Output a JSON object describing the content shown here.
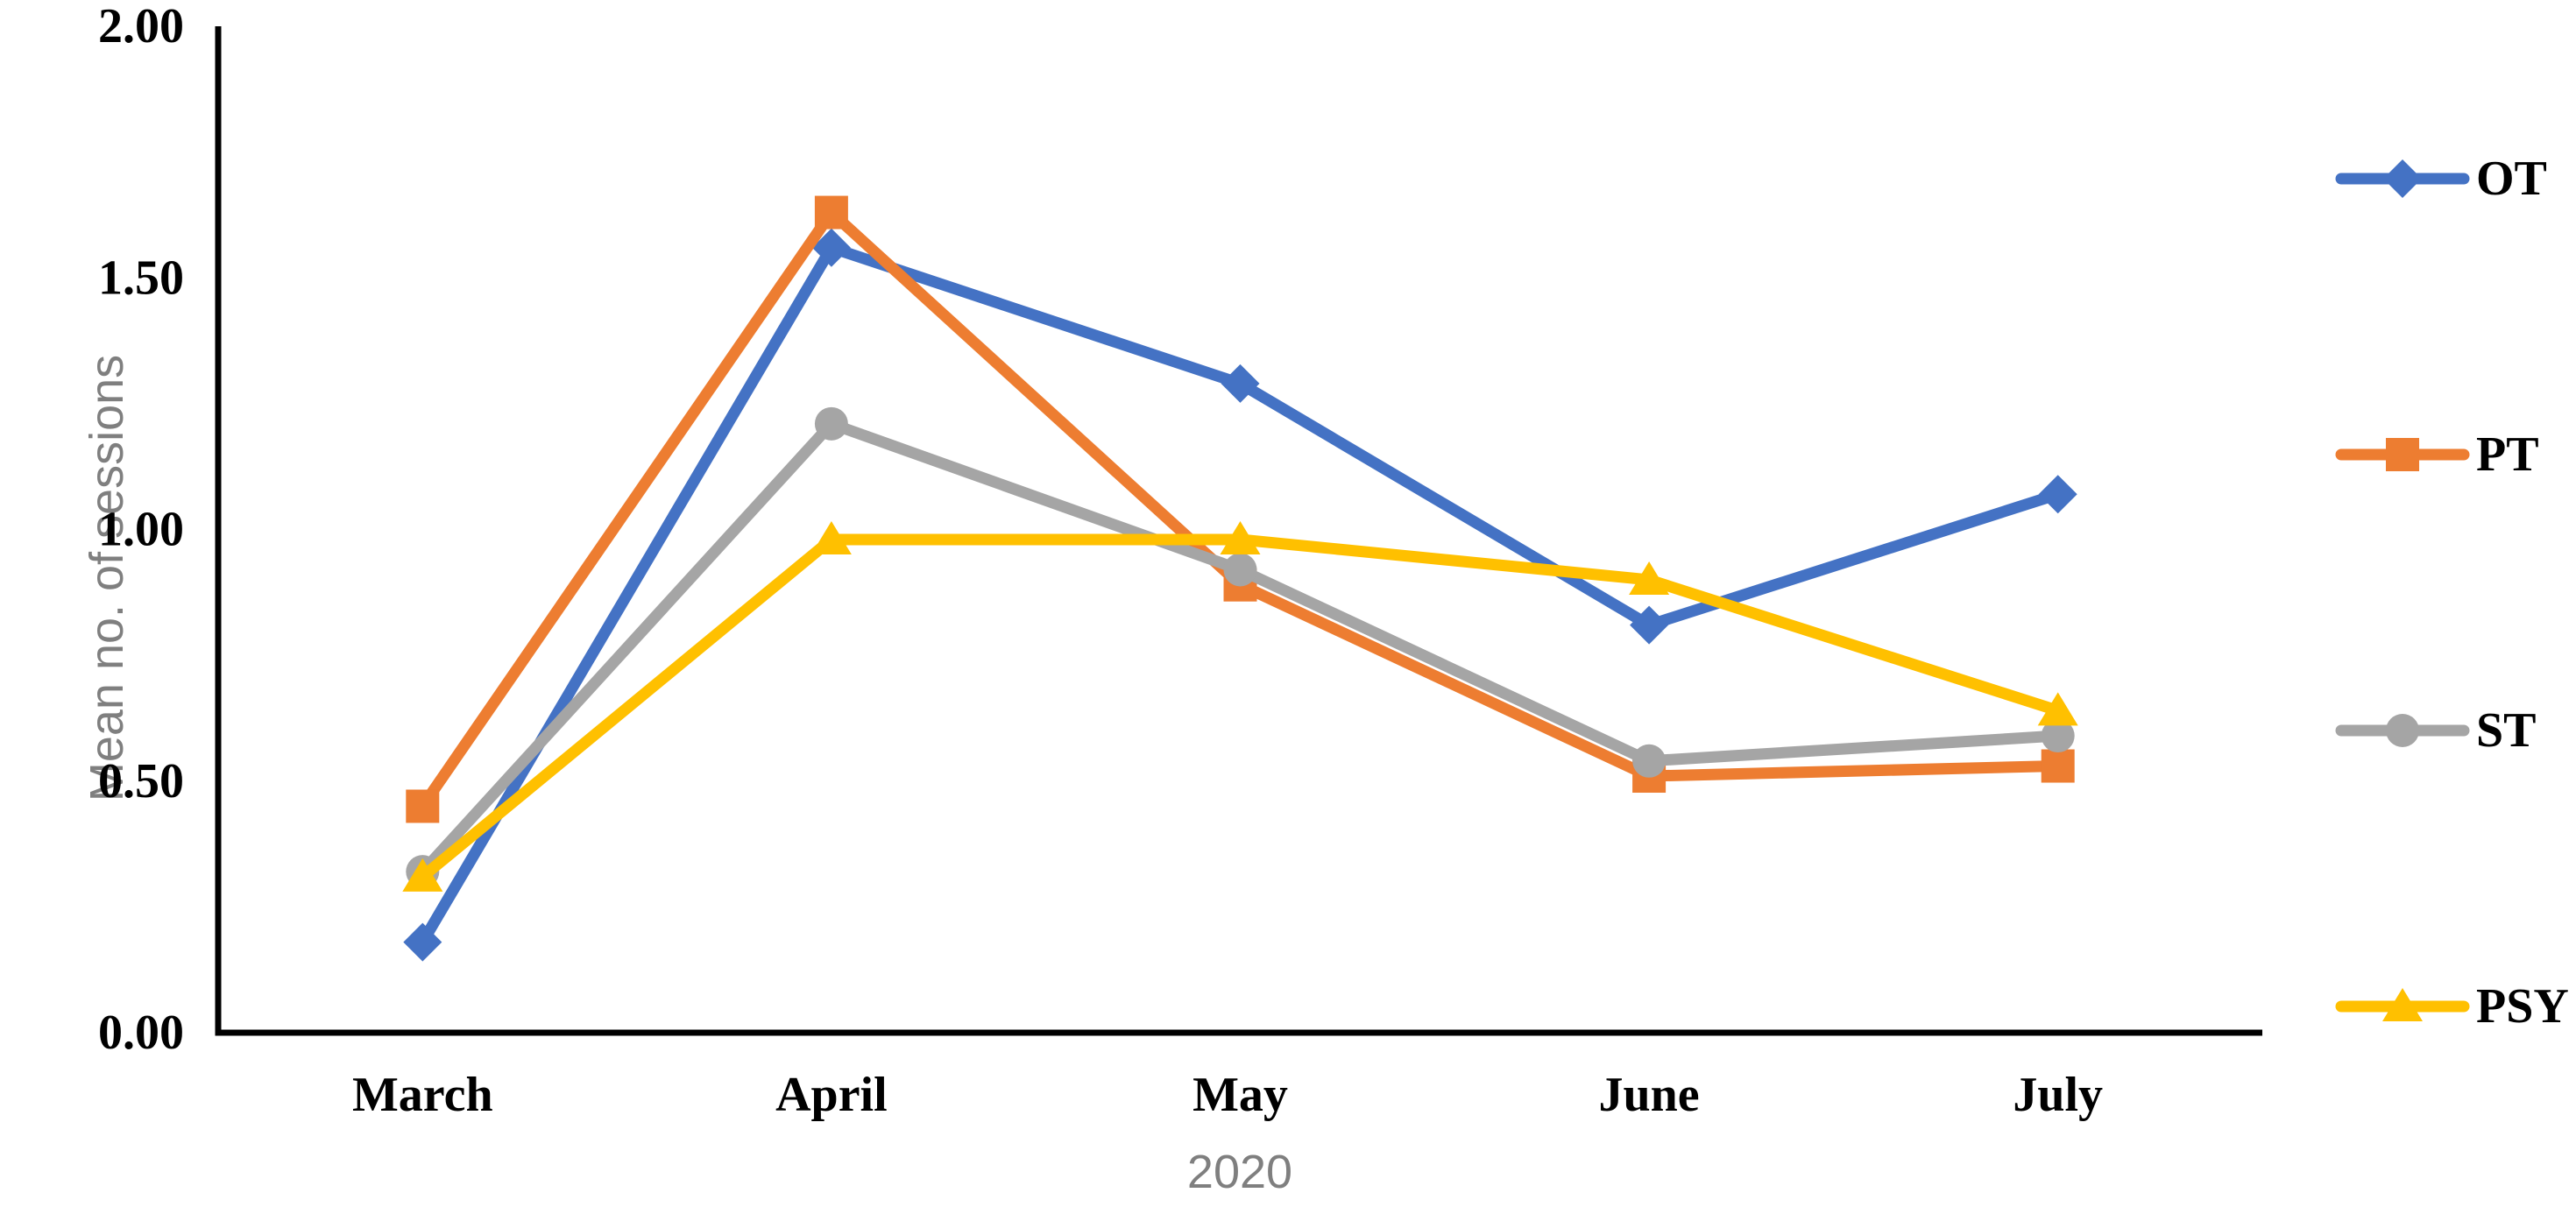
{
  "figure": {
    "background": "#ffffff",
    "axis_color": "#000000",
    "label_gray": "#7f7f7f"
  },
  "chart_data": {
    "type": "line",
    "title": "",
    "xlabel": "2020",
    "ylabel": "Mean no. of sessions",
    "categories": [
      "March",
      "April",
      "May",
      "June",
      "July"
    ],
    "series": [
      {
        "name": "OT",
        "color": "#4472C4",
        "marker": "diamond",
        "values": [
          0.18,
          1.56,
          1.29,
          0.81,
          1.07
        ]
      },
      {
        "name": "PT",
        "color": "#ED7D31",
        "marker": "square",
        "values": [
          0.45,
          1.63,
          0.89,
          0.51,
          0.53
        ]
      },
      {
        "name": "ST",
        "color": "#A5A5A5",
        "marker": "circle",
        "values": [
          0.32,
          1.21,
          0.92,
          0.54,
          0.59
        ]
      },
      {
        "name": "PSY",
        "color": "#FFC000",
        "marker": "triangle",
        "values": [
          0.31,
          0.98,
          0.98,
          0.9,
          0.64
        ]
      }
    ],
    "ylim": [
      0,
      2
    ],
    "y_ticks": [
      {
        "value": 0.0,
        "label": "0.00"
      },
      {
        "value": 0.5,
        "label": "0.50"
      },
      {
        "value": 1.0,
        "label": "1.00"
      },
      {
        "value": 1.5,
        "label": "1.50"
      },
      {
        "value": 2.0,
        "label": "2.00"
      }
    ],
    "grid": false,
    "legend_position": "right"
  }
}
